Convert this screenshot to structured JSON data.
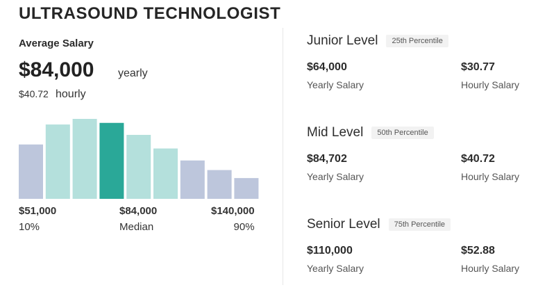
{
  "header": {
    "title": "ULTRASOUND TECHNOLOGIST"
  },
  "summary": {
    "label": "Average Salary",
    "yearly_value": "$84,000",
    "yearly_unit": "yearly",
    "hourly_value": "$40.72",
    "hourly_unit": "hourly"
  },
  "chart_data": {
    "type": "bar",
    "title": "",
    "xlabel": "",
    "ylabel": "",
    "ylim": [
      0,
      100
    ],
    "grid": false,
    "legend": "none",
    "categories": [
      "1",
      "2",
      "3",
      "4",
      "5",
      "6",
      "7",
      "8",
      "9"
    ],
    "values": [
      68,
      93,
      100,
      95,
      80,
      63,
      48,
      36,
      26
    ],
    "bar_colors": [
      "#bdc6dc",
      "#b4e0dc",
      "#b4e0dc",
      "#2aa898",
      "#b4e0dc",
      "#b4e0dc",
      "#bdc6dc",
      "#bdc6dc",
      "#bdc6dc"
    ],
    "percentile_labels": [
      {
        "value": "$51,000",
        "label": "10%"
      },
      {
        "value": "$84,000",
        "label": "Median"
      },
      {
        "value": "$140,000",
        "label": "90%"
      }
    ]
  },
  "levels": [
    {
      "name": "Junior Level",
      "percentile": "25th Percentile",
      "yearly": "$64,000",
      "yearly_label": "Yearly Salary",
      "hourly": "$30.77",
      "hourly_label": "Hourly Salary"
    },
    {
      "name": "Mid Level",
      "percentile": "50th Percentile",
      "yearly": "$84,702",
      "yearly_label": "Yearly Salary",
      "hourly": "$40.72",
      "hourly_label": "Hourly Salary"
    },
    {
      "name": "Senior Level",
      "percentile": "75th Percentile",
      "yearly": "$110,000",
      "yearly_label": "Yearly Salary",
      "hourly": "$52.88",
      "hourly_label": "Hourly Salary"
    }
  ]
}
